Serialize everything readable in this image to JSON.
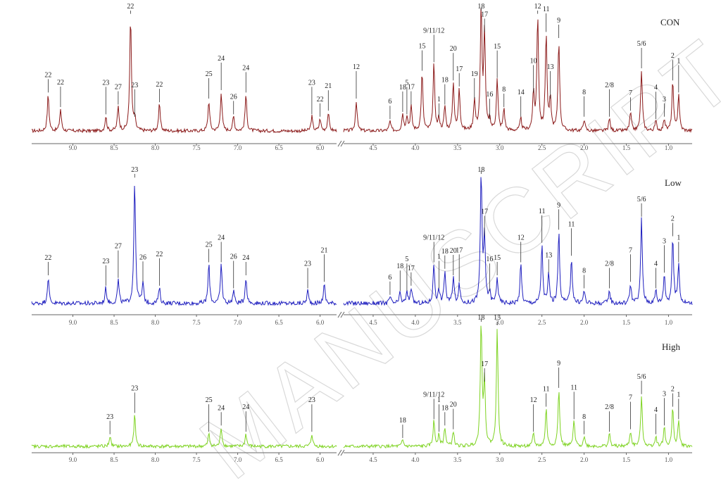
{
  "chart_data": {
    "type": "line",
    "xlabel": "",
    "ylabel": "",
    "watermark": "MANUSCRIPT",
    "x_unit": "ppm",
    "panels": [
      {
        "title": "CON",
        "color": "#8b1a1a",
        "aromatic_ticks": [
          "9.0",
          "8.5",
          "8.0",
          "7.5",
          "7.0",
          "6.5",
          "6.0"
        ],
        "aliphatic_ticks": [
          "4.5",
          "4.0",
          "3.5",
          "3.0",
          "2.5",
          "2.0",
          "1.5",
          "1.0"
        ],
        "peak_labels": [
          {
            "label": "22",
            "ppm": 9.3,
            "height": 0.3
          },
          {
            "label": "22",
            "ppm": 9.15,
            "height": 0.18
          },
          {
            "label": "23",
            "ppm": 8.6,
            "height": 0.12
          },
          {
            "label": "27",
            "ppm": 8.45,
            "height": 0.2
          },
          {
            "label": "22",
            "ppm": 8.3,
            "height": 0.95
          },
          {
            "label": "23",
            "ppm": 8.25,
            "height": 0.1
          },
          {
            "label": "22",
            "ppm": 7.95,
            "height": 0.22
          },
          {
            "label": "25",
            "ppm": 7.35,
            "height": 0.25
          },
          {
            "label": "24",
            "ppm": 7.2,
            "height": 0.32
          },
          {
            "label": "26",
            "ppm": 7.05,
            "height": 0.12
          },
          {
            "label": "24",
            "ppm": 6.9,
            "height": 0.3
          },
          {
            "label": "23",
            "ppm": 6.1,
            "height": 0.12
          },
          {
            "label": "22",
            "ppm": 6.0,
            "height": 0.1
          },
          {
            "label": "21",
            "ppm": 5.9,
            "height": 0.15
          },
          {
            "label": "12",
            "ppm": 4.7,
            "height": 0.25
          },
          {
            "label": "6",
            "ppm": 4.3,
            "height": 0.08
          },
          {
            "label": "18",
            "ppm": 4.15,
            "height": 0.14
          },
          {
            "label": "5",
            "ppm": 4.1,
            "height": 0.12
          },
          {
            "label": "17",
            "ppm": 4.05,
            "height": 0.2
          },
          {
            "label": "15",
            "ppm": 3.92,
            "height": 0.48
          },
          {
            "label": "9/11/12",
            "ppm": 3.78,
            "height": 0.55
          },
          {
            "label": "1",
            "ppm": 3.72,
            "height": 0.1
          },
          {
            "label": "18",
            "ppm": 3.65,
            "height": 0.2
          },
          {
            "label": "20",
            "ppm": 3.55,
            "height": 0.4
          },
          {
            "label": "17",
            "ppm": 3.48,
            "height": 0.35
          },
          {
            "label": "19",
            "ppm": 3.3,
            "height": 0.25
          },
          {
            "label": "18",
            "ppm": 3.22,
            "height": 1.0
          },
          {
            "label": "17",
            "ppm": 3.18,
            "height": 0.8
          },
          {
            "label": "16",
            "ppm": 3.12,
            "height": 0.08
          },
          {
            "label": "15",
            "ppm": 3.03,
            "height": 0.42
          },
          {
            "label": "8",
            "ppm": 2.95,
            "height": 0.18
          },
          {
            "label": "14",
            "ppm": 2.75,
            "height": 0.1
          },
          {
            "label": "10",
            "ppm": 2.6,
            "height": 0.3
          },
          {
            "label": "12",
            "ppm": 2.55,
            "height": 0.95
          },
          {
            "label": "11",
            "ppm": 2.45,
            "height": 0.8
          },
          {
            "label": "13",
            "ppm": 2.4,
            "height": 0.25
          },
          {
            "label": "9",
            "ppm": 2.3,
            "height": 0.75
          },
          {
            "label": "8",
            "ppm": 2.0,
            "height": 0.1
          },
          {
            "label": "2/8",
            "ppm": 1.7,
            "height": 0.1
          },
          {
            "label": "7",
            "ppm": 1.45,
            "height": 0.15
          },
          {
            "label": "5/6",
            "ppm": 1.32,
            "height": 0.5
          },
          {
            "label": "4",
            "ppm": 1.15,
            "height": 0.08
          },
          {
            "label": "3",
            "ppm": 1.05,
            "height": 0.1
          },
          {
            "label": "2",
            "ppm": 0.95,
            "height": 0.4
          },
          {
            "label": "1",
            "ppm": 0.88,
            "height": 0.3
          }
        ]
      },
      {
        "title": "Low",
        "color": "#1f1fbf",
        "aromatic_ticks": [
          "9.0",
          "8.5",
          "8.0",
          "7.5",
          "7.0",
          "6.5",
          "6.0"
        ],
        "aliphatic_ticks": [
          "4.5",
          "4.0",
          "3.5",
          "3.0",
          "2.5",
          "2.0",
          "1.5",
          "1.0"
        ],
        "peak_labels": [
          {
            "label": "22",
            "ppm": 9.3,
            "height": 0.2
          },
          {
            "label": "23",
            "ppm": 8.6,
            "height": 0.12
          },
          {
            "label": "27",
            "ppm": 8.45,
            "height": 0.18
          },
          {
            "label": "23",
            "ppm": 8.25,
            "height": 0.95
          },
          {
            "label": "26",
            "ppm": 8.15,
            "height": 0.15
          },
          {
            "label": "22",
            "ppm": 7.95,
            "height": 0.12
          },
          {
            "label": "25",
            "ppm": 7.35,
            "height": 0.3
          },
          {
            "label": "24",
            "ppm": 7.2,
            "height": 0.3
          },
          {
            "label": "26",
            "ppm": 7.05,
            "height": 0.1
          },
          {
            "label": "24",
            "ppm": 6.9,
            "height": 0.2
          },
          {
            "label": "23",
            "ppm": 6.15,
            "height": 0.1
          },
          {
            "label": "21",
            "ppm": 5.95,
            "height": 0.15
          },
          {
            "label": "6",
            "ppm": 4.3,
            "height": 0.05
          },
          {
            "label": "18",
            "ppm": 4.18,
            "height": 0.08
          },
          {
            "label": "5",
            "ppm": 4.1,
            "height": 0.08
          },
          {
            "label": "17",
            "ppm": 4.05,
            "height": 0.12
          },
          {
            "label": "9/11/12",
            "ppm": 3.78,
            "height": 0.3
          },
          {
            "label": "1",
            "ppm": 3.72,
            "height": 0.1
          },
          {
            "label": "18",
            "ppm": 3.65,
            "height": 0.25
          },
          {
            "label": "20",
            "ppm": 3.55,
            "height": 0.2
          },
          {
            "label": "17",
            "ppm": 3.48,
            "height": 0.15
          },
          {
            "label": "18",
            "ppm": 3.22,
            "height": 1.0
          },
          {
            "label": "17",
            "ppm": 3.18,
            "height": 0.5
          },
          {
            "label": "16",
            "ppm": 3.12,
            "height": 0.08
          },
          {
            "label": "15",
            "ppm": 3.03,
            "height": 0.2
          },
          {
            "label": "12",
            "ppm": 2.75,
            "height": 0.3
          },
          {
            "label": "11",
            "ppm": 2.5,
            "height": 0.45
          },
          {
            "label": "13",
            "ppm": 2.42,
            "height": 0.22
          },
          {
            "label": "9",
            "ppm": 2.3,
            "height": 0.55
          },
          {
            "label": "11",
            "ppm": 2.15,
            "height": 0.35
          },
          {
            "label": "8",
            "ppm": 2.0,
            "height": 0.1
          },
          {
            "label": "2/8",
            "ppm": 1.7,
            "height": 0.1
          },
          {
            "label": "7",
            "ppm": 1.45,
            "height": 0.15
          },
          {
            "label": "5/6",
            "ppm": 1.32,
            "height": 0.65
          },
          {
            "label": "4",
            "ppm": 1.15,
            "height": 0.1
          },
          {
            "label": "3",
            "ppm": 1.05,
            "height": 0.22
          },
          {
            "label": "2",
            "ppm": 0.95,
            "height": 0.5
          },
          {
            "label": "1",
            "ppm": 0.88,
            "height": 0.3
          }
        ]
      },
      {
        "title": "High",
        "color": "#7ed321",
        "aromatic_ticks": [
          "9.0",
          "8.5",
          "8.0",
          "7.5",
          "7.0",
          "6.5",
          "6.0"
        ],
        "aliphatic_ticks": [
          "4.5",
          "4.0",
          "3.5",
          "3.0",
          "2.5",
          "2.0",
          "1.5",
          "1.0"
        ],
        "peak_labels": [
          {
            "label": "23",
            "ppm": 8.55,
            "height": 0.08
          },
          {
            "label": "23",
            "ppm": 8.25,
            "height": 0.25
          },
          {
            "label": "25",
            "ppm": 7.35,
            "height": 0.1
          },
          {
            "label": "24",
            "ppm": 7.2,
            "height": 0.15
          },
          {
            "label": "24",
            "ppm": 6.9,
            "height": 0.1
          },
          {
            "label": "23",
            "ppm": 6.1,
            "height": 0.1
          },
          {
            "label": "18",
            "ppm": 4.15,
            "height": 0.05
          },
          {
            "label": "9/11/12",
            "ppm": 3.78,
            "height": 0.2
          },
          {
            "label": "1",
            "ppm": 3.72,
            "height": 0.1
          },
          {
            "label": "18",
            "ppm": 3.65,
            "height": 0.15
          },
          {
            "label": "20",
            "ppm": 3.55,
            "height": 0.12
          },
          {
            "label": "18",
            "ppm": 3.22,
            "height": 1.0
          },
          {
            "label": "17",
            "ppm": 3.18,
            "height": 0.5
          },
          {
            "label": "15",
            "ppm": 3.03,
            "height": 0.95
          },
          {
            "label": "12",
            "ppm": 2.6,
            "height": 0.1
          },
          {
            "label": "11",
            "ppm": 2.45,
            "height": 0.3
          },
          {
            "label": "9",
            "ppm": 2.3,
            "height": 0.45
          },
          {
            "label": "11",
            "ppm": 2.12,
            "height": 0.2
          },
          {
            "label": "8",
            "ppm": 2.0,
            "height": 0.08
          },
          {
            "label": "2/8",
            "ppm": 1.7,
            "height": 0.1
          },
          {
            "label": "7",
            "ppm": 1.45,
            "height": 0.12
          },
          {
            "label": "5/6",
            "ppm": 1.32,
            "height": 0.4
          },
          {
            "label": "4",
            "ppm": 1.15,
            "height": 0.08
          },
          {
            "label": "3",
            "ppm": 1.05,
            "height": 0.15
          },
          {
            "label": "2",
            "ppm": 0.95,
            "height": 0.3
          },
          {
            "label": "1",
            "ppm": 0.88,
            "height": 0.2
          }
        ]
      }
    ]
  }
}
